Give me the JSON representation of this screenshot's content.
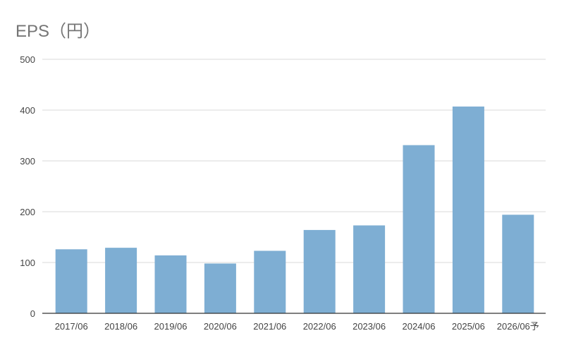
{
  "chart_data": {
    "type": "bar",
    "title": "EPS（円）",
    "xlabel": "",
    "ylabel": "",
    "categories": [
      "2017/06",
      "2018/06",
      "2019/06",
      "2020/06",
      "2021/06",
      "2022/06",
      "2023/06",
      "2024/06",
      "2025/06",
      "2026/06予"
    ],
    "values": [
      126,
      129,
      114,
      98,
      123,
      164,
      173,
      331,
      407,
      194
    ],
    "ylim": [
      0,
      500
    ],
    "yticks": [
      0,
      100,
      200,
      300,
      400,
      500
    ],
    "grid": true,
    "legend": "none",
    "bar_color": "#7eaed3",
    "grid_color": "#d9d9d9",
    "axis_color": "#333333"
  }
}
